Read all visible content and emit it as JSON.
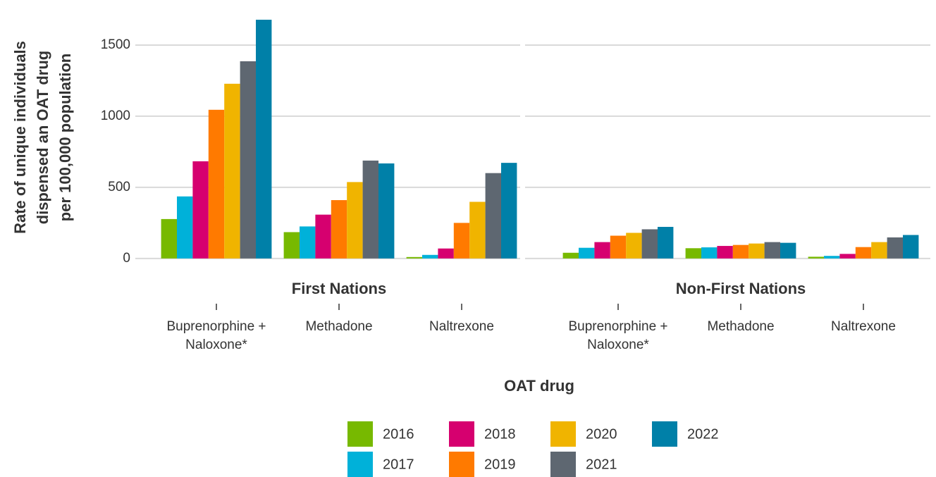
{
  "chart_data": {
    "type": "bar",
    "ylabel": [
      "Rate of unique individuals",
      "dispensed an OAT drug",
      "per 100,000 population"
    ],
    "xlabel": "OAT drug",
    "ylim": [
      -90,
      1780
    ],
    "yticks": [
      0,
      500,
      1000,
      1500
    ],
    "grid": true,
    "legend": "bottom",
    "facets": [
      {
        "title": "First Nations",
        "categories": [
          "Buprenorphine + Naloxone*",
          "Methadone",
          "Naltrexone"
        ],
        "series": [
          {
            "name": "2016",
            "color": "#77b900",
            "values": [
              277,
              185,
              10
            ]
          },
          {
            "name": "2017",
            "color": "#00b1d9",
            "values": [
              436,
              225,
              25
            ]
          },
          {
            "name": "2018",
            "color": "#d6006f",
            "values": [
              683,
              308,
              70
            ]
          },
          {
            "name": "2019",
            "color": "#ff7a00",
            "values": [
              1045,
              410,
              250
            ]
          },
          {
            "name": "2020",
            "color": "#f0b400",
            "values": [
              1228,
              537,
              398
            ]
          },
          {
            "name": "2021",
            "color": "#5e6771",
            "values": [
              1386,
              688,
              600
            ]
          },
          {
            "name": "2022",
            "color": "#0080a8",
            "values": [
              1678,
              668,
              672
            ]
          }
        ]
      },
      {
        "title": "Non-First Nations",
        "categories": [
          "Buprenorphine + Naloxone*",
          "Methadone",
          "Naltrexone"
        ],
        "series": [
          {
            "name": "2016",
            "color": "#77b900",
            "values": [
              40,
              72,
              12
            ]
          },
          {
            "name": "2017",
            "color": "#00b1d9",
            "values": [
              75,
              78,
              18
            ]
          },
          {
            "name": "2018",
            "color": "#d6006f",
            "values": [
              115,
              88,
              32
            ]
          },
          {
            "name": "2019",
            "color": "#ff7a00",
            "values": [
              160,
              95,
              80
            ]
          },
          {
            "name": "2020",
            "color": "#f0b400",
            "values": [
              180,
              105,
              115
            ]
          },
          {
            "name": "2021",
            "color": "#5e6771",
            "values": [
              205,
              115,
              148
            ]
          },
          {
            "name": "2022",
            "color": "#0080a8",
            "values": [
              222,
              110,
              165
            ]
          }
        ]
      }
    ]
  }
}
